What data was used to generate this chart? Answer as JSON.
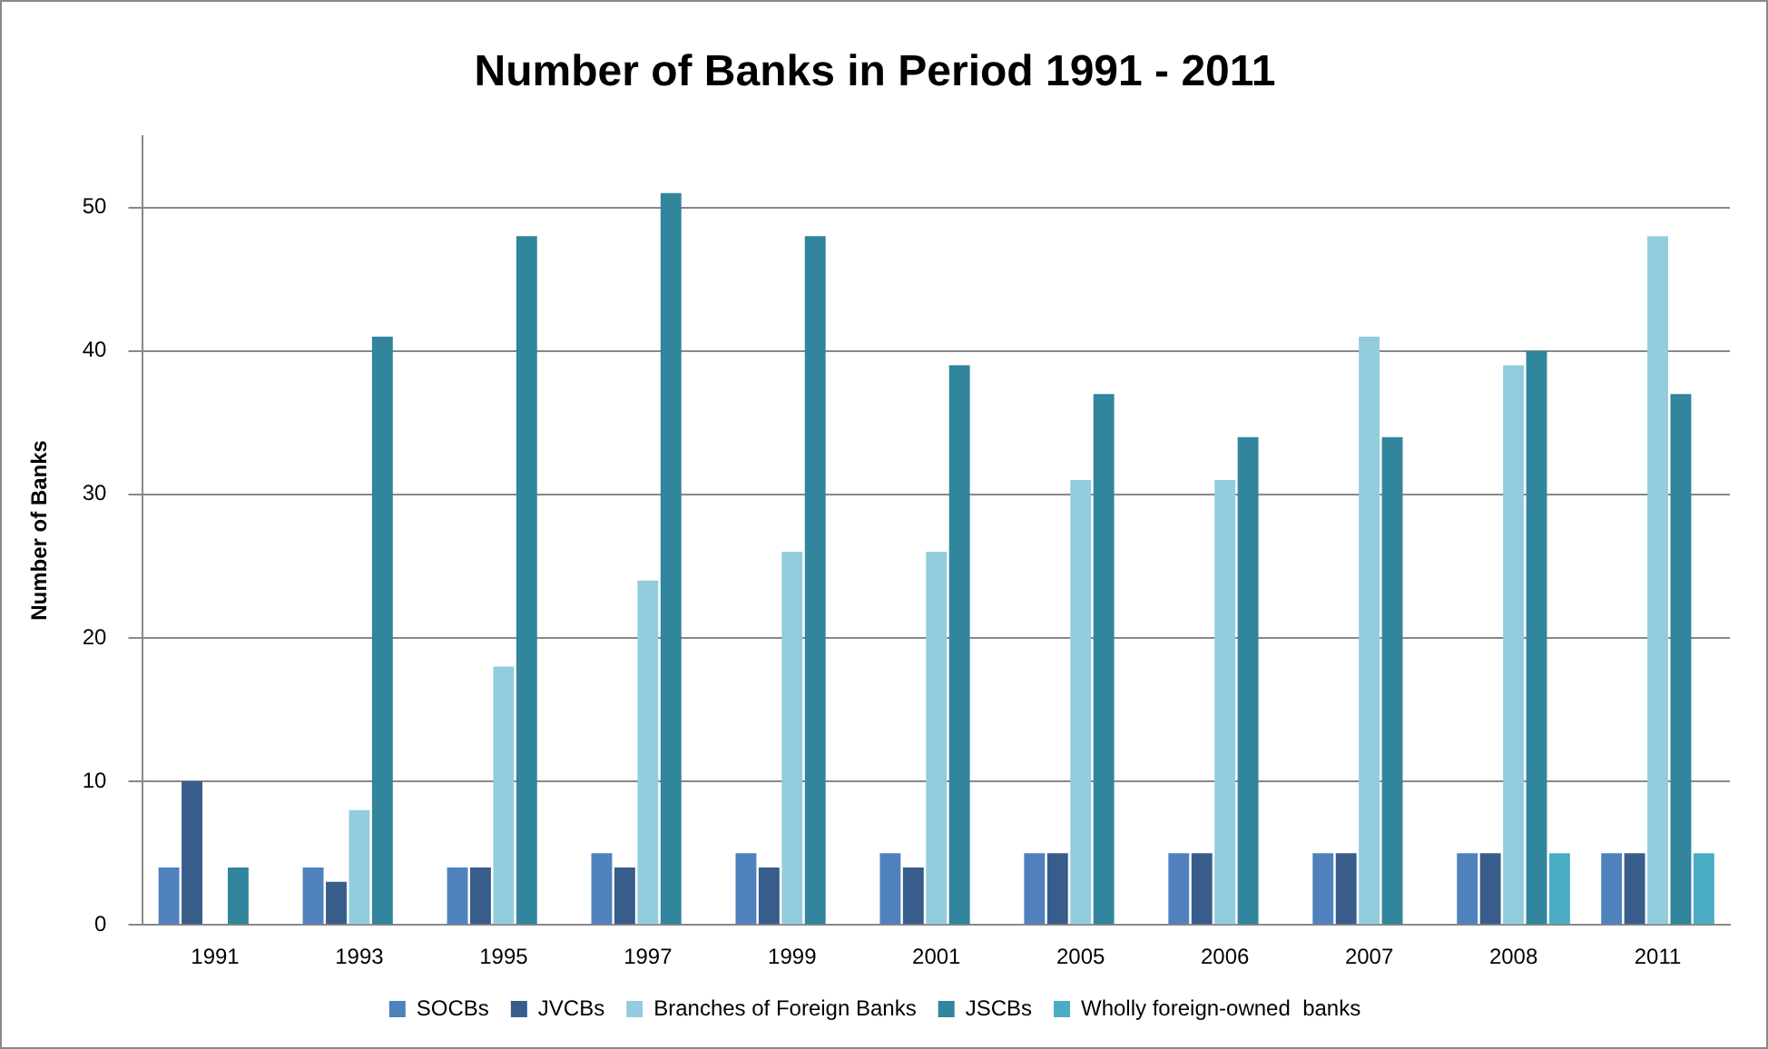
{
  "chart_data": {
    "type": "bar",
    "title": "Number of Banks in Period 1991 - 2011",
    "ylabel": "Number of Banks",
    "categories": [
      "1991",
      "1993",
      "1995",
      "1997",
      "1999",
      "2001",
      "2005",
      "2006",
      "2007",
      "2008",
      "2011"
    ],
    "series": [
      {
        "name": "SOCBs",
        "color": "#4f81bd",
        "values": [
          4,
          4,
          4,
          5,
          5,
          5,
          5,
          5,
          5,
          5,
          5
        ]
      },
      {
        "name": "JVCBs",
        "color": "#385d8a",
        "values": [
          10,
          3,
          4,
          4,
          4,
          4,
          5,
          5,
          5,
          5,
          5
        ]
      },
      {
        "name": "Branches of Foreign Banks",
        "color": "#93cddd",
        "values": [
          null,
          8,
          18,
          24,
          26,
          26,
          31,
          31,
          41,
          39,
          48
        ]
      },
      {
        "name": "JSCBs",
        "color": "#31859c",
        "values": [
          4,
          41,
          48,
          51,
          48,
          39,
          37,
          34,
          34,
          40,
          37
        ]
      },
      {
        "name": "Wholly foreign-owned  banks",
        "color": "#4bacc6",
        "values": [
          null,
          null,
          null,
          null,
          null,
          null,
          null,
          null,
          null,
          5,
          5
        ]
      }
    ],
    "ylim": [
      0,
      55
    ],
    "yticks": [
      0,
      10,
      20,
      30,
      40,
      50
    ],
    "grid": "y",
    "legend": "bottom"
  }
}
